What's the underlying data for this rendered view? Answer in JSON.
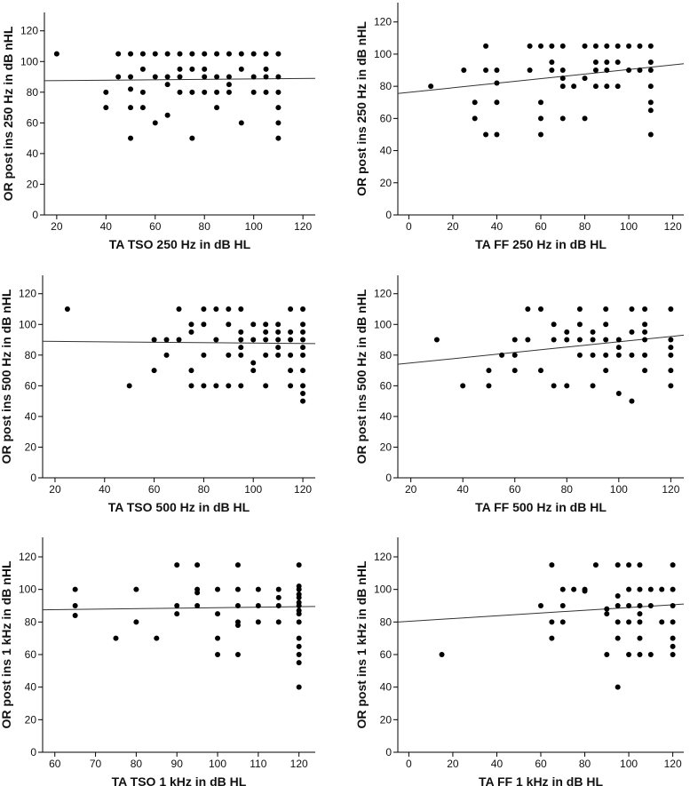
{
  "chart_data": [
    {
      "type": "scatter",
      "xlabel": "TA TSO 250 Hz in dB HL",
      "ylabel": "OR post ins 250 Hz in dB nHL",
      "xlim": [
        15,
        125
      ],
      "ylim": [
        0,
        132
      ],
      "xticks": [
        20,
        40,
        60,
        80,
        100,
        120
      ],
      "yticks": [
        0,
        20,
        40,
        60,
        80,
        100,
        120
      ],
      "fit": {
        "x0": 15,
        "y0": 87.5,
        "x1": 125,
        "y1": 89
      },
      "points": [
        [
          20,
          105
        ],
        [
          40,
          80
        ],
        [
          40,
          70
        ],
        [
          45,
          105
        ],
        [
          45,
          90
        ],
        [
          50,
          105
        ],
        [
          50,
          90
        ],
        [
          50,
          82
        ],
        [
          50,
          70
        ],
        [
          50,
          50
        ],
        [
          55,
          105
        ],
        [
          55,
          95
        ],
        [
          55,
          80
        ],
        [
          55,
          70
        ],
        [
          60,
          105
        ],
        [
          60,
          90
        ],
        [
          60,
          60
        ],
        [
          65,
          105
        ],
        [
          65,
          90
        ],
        [
          65,
          85
        ],
        [
          65,
          65
        ],
        [
          70,
          105
        ],
        [
          70,
          95
        ],
        [
          70,
          90
        ],
        [
          70,
          80
        ],
        [
          75,
          105
        ],
        [
          75,
          95
        ],
        [
          75,
          80
        ],
        [
          75,
          50
        ],
        [
          80,
          105
        ],
        [
          80,
          95
        ],
        [
          80,
          90
        ],
        [
          80,
          80
        ],
        [
          85,
          105
        ],
        [
          85,
          90
        ],
        [
          85,
          80
        ],
        [
          85,
          70
        ],
        [
          90,
          105
        ],
        [
          90,
          90
        ],
        [
          90,
          85
        ],
        [
          90,
          80
        ],
        [
          95,
          105
        ],
        [
          95,
          95
        ],
        [
          95,
          60
        ],
        [
          100,
          105
        ],
        [
          100,
          90
        ],
        [
          100,
          80
        ],
        [
          105,
          105
        ],
        [
          105,
          95
        ],
        [
          105,
          90
        ],
        [
          105,
          80
        ],
        [
          110,
          105
        ],
        [
          110,
          90
        ],
        [
          110,
          80
        ],
        [
          110,
          70
        ],
        [
          110,
          60
        ],
        [
          110,
          50
        ]
      ]
    },
    {
      "type": "scatter",
      "xlabel": "TA FF 250 Hz in dB HL",
      "ylabel": "OR post ins 250 Hz in dB nHL",
      "xlim": [
        -5,
        125
      ],
      "ylim": [
        0,
        132
      ],
      "xticks": [
        0,
        20,
        40,
        60,
        80,
        100,
        120
      ],
      "yticks": [
        0,
        20,
        40,
        60,
        80,
        100,
        120
      ],
      "fit": {
        "x0": -5,
        "y0": 75.5,
        "x1": 125,
        "y1": 94
      },
      "points": [
        [
          10,
          80
        ],
        [
          25,
          90
        ],
        [
          30,
          70
        ],
        [
          30,
          60
        ],
        [
          35,
          105
        ],
        [
          35,
          90
        ],
        [
          35,
          50
        ],
        [
          40,
          90
        ],
        [
          40,
          82
        ],
        [
          40,
          70
        ],
        [
          40,
          50
        ],
        [
          55,
          105
        ],
        [
          55,
          90
        ],
        [
          60,
          105
        ],
        [
          60,
          70
        ],
        [
          60,
          60
        ],
        [
          60,
          50
        ],
        [
          65,
          105
        ],
        [
          65,
          95
        ],
        [
          65,
          90
        ],
        [
          70,
          105
        ],
        [
          70,
          90
        ],
        [
          70,
          85
        ],
        [
          70,
          80
        ],
        [
          70,
          60
        ],
        [
          75,
          80
        ],
        [
          80,
          105
        ],
        [
          80,
          85
        ],
        [
          80,
          60
        ],
        [
          85,
          105
        ],
        [
          85,
          95
        ],
        [
          85,
          90
        ],
        [
          85,
          80
        ],
        [
          90,
          105
        ],
        [
          90,
          95
        ],
        [
          90,
          90
        ],
        [
          90,
          80
        ],
        [
          95,
          105
        ],
        [
          95,
          95
        ],
        [
          95,
          80
        ],
        [
          100,
          105
        ],
        [
          100,
          90
        ],
        [
          105,
          105
        ],
        [
          105,
          90
        ],
        [
          110,
          105
        ],
        [
          110,
          95
        ],
        [
          110,
          90
        ],
        [
          110,
          80
        ],
        [
          110,
          70
        ],
        [
          110,
          65
        ],
        [
          110,
          50
        ]
      ]
    },
    {
      "type": "scatter",
      "xlabel": "TA TSO 500 Hz in dB HL",
      "ylabel": "OR post ins 500 Hz in dB nHL",
      "xlim": [
        15,
        125
      ],
      "ylim": [
        0,
        132
      ],
      "xticks": [
        20,
        40,
        60,
        80,
        100,
        120
      ],
      "yticks": [
        0,
        20,
        40,
        60,
        80,
        100,
        120
      ],
      "fit": {
        "x0": 15,
        "y0": 89,
        "x1": 125,
        "y1": 87.5
      },
      "points": [
        [
          25,
          110
        ],
        [
          50,
          60
        ],
        [
          60,
          90
        ],
        [
          60,
          70
        ],
        [
          65,
          90
        ],
        [
          65,
          80
        ],
        [
          70,
          110
        ],
        [
          70,
          90
        ],
        [
          75,
          100
        ],
        [
          75,
          95
        ],
        [
          75,
          70
        ],
        [
          75,
          60
        ],
        [
          80,
          110
        ],
        [
          80,
          100
        ],
        [
          80,
          80
        ],
        [
          80,
          60
        ],
        [
          85,
          110
        ],
        [
          85,
          90
        ],
        [
          85,
          60
        ],
        [
          90,
          110
        ],
        [
          90,
          100
        ],
        [
          90,
          80
        ],
        [
          90,
          60
        ],
        [
          95,
          110
        ],
        [
          95,
          95
        ],
        [
          95,
          90
        ],
        [
          95,
          85
        ],
        [
          95,
          80
        ],
        [
          95,
          60
        ],
        [
          100,
          100
        ],
        [
          100,
          90
        ],
        [
          100,
          75
        ],
        [
          100,
          70
        ],
        [
          105,
          100
        ],
        [
          105,
          95
        ],
        [
          105,
          90
        ],
        [
          105,
          80
        ],
        [
          105,
          60
        ],
        [
          110,
          100
        ],
        [
          110,
          95
        ],
        [
          110,
          90
        ],
        [
          110,
          85
        ],
        [
          110,
          80
        ],
        [
          115,
          110
        ],
        [
          115,
          95
        ],
        [
          115,
          90
        ],
        [
          115,
          80
        ],
        [
          115,
          70
        ],
        [
          115,
          60
        ],
        [
          120,
          110
        ],
        [
          120,
          100
        ],
        [
          120,
          95
        ],
        [
          120,
          90
        ],
        [
          120,
          85
        ],
        [
          120,
          80
        ],
        [
          120,
          70
        ],
        [
          120,
          60
        ],
        [
          120,
          55
        ],
        [
          120,
          50
        ]
      ]
    },
    {
      "type": "scatter",
      "xlabel": "TA FF 500 Hz in dB HL",
      "ylabel": "OR post ins 500 Hz in dB nHL",
      "xlim": [
        15,
        125
      ],
      "ylim": [
        0,
        132
      ],
      "xticks": [
        20,
        40,
        60,
        80,
        100,
        120
      ],
      "yticks": [
        0,
        20,
        40,
        60,
        80,
        100,
        120
      ],
      "fit": {
        "x0": 15,
        "y0": 74,
        "x1": 125,
        "y1": 93
      },
      "points": [
        [
          30,
          90
        ],
        [
          40,
          60
        ],
        [
          50,
          70
        ],
        [
          50,
          60
        ],
        [
          55,
          80
        ],
        [
          60,
          90
        ],
        [
          60,
          80
        ],
        [
          60,
          70
        ],
        [
          65,
          110
        ],
        [
          65,
          90
        ],
        [
          70,
          110
        ],
        [
          70,
          70
        ],
        [
          75,
          100
        ],
        [
          75,
          90
        ],
        [
          75,
          60
        ],
        [
          80,
          95
        ],
        [
          80,
          90
        ],
        [
          80,
          60
        ],
        [
          85,
          110
        ],
        [
          85,
          100
        ],
        [
          85,
          90
        ],
        [
          85,
          80
        ],
        [
          90,
          95
        ],
        [
          90,
          90
        ],
        [
          90,
          80
        ],
        [
          90,
          60
        ],
        [
          95,
          110
        ],
        [
          95,
          100
        ],
        [
          95,
          90
        ],
        [
          95,
          80
        ],
        [
          95,
          70
        ],
        [
          100,
          90
        ],
        [
          100,
          85
        ],
        [
          100,
          80
        ],
        [
          100,
          55
        ],
        [
          105,
          110
        ],
        [
          105,
          95
        ],
        [
          105,
          80
        ],
        [
          105,
          50
        ],
        [
          110,
          110
        ],
        [
          110,
          100
        ],
        [
          110,
          95
        ],
        [
          110,
          90
        ],
        [
          110,
          80
        ],
        [
          110,
          70
        ],
        [
          120,
          110
        ],
        [
          120,
          90
        ],
        [
          120,
          85
        ],
        [
          120,
          80
        ],
        [
          120,
          70
        ],
        [
          120,
          60
        ]
      ]
    },
    {
      "type": "scatter",
      "xlabel": "TA TSO 1 kHz in dB HL",
      "ylabel": "OR post ins 1 kHz in dB nHL",
      "xlim": [
        57,
        124
      ],
      "ylim": [
        0,
        132
      ],
      "xticks": [
        60,
        70,
        80,
        90,
        100,
        110,
        120
      ],
      "yticks": [
        0,
        20,
        40,
        60,
        80,
        100,
        120
      ],
      "fit": {
        "x0": 57,
        "y0": 87.5,
        "x1": 124,
        "y1": 89.5
      },
      "points": [
        [
          65,
          100
        ],
        [
          65,
          90
        ],
        [
          65,
          84
        ],
        [
          75,
          70
        ],
        [
          80,
          100
        ],
        [
          80,
          80
        ],
        [
          85,
          70
        ],
        [
          90,
          115
        ],
        [
          90,
          90
        ],
        [
          90,
          85
        ],
        [
          95,
          115
        ],
        [
          95,
          100
        ],
        [
          95,
          98
        ],
        [
          95,
          90
        ],
        [
          100,
          100
        ],
        [
          100,
          85
        ],
        [
          100,
          70
        ],
        [
          100,
          60
        ],
        [
          105,
          115
        ],
        [
          105,
          100
        ],
        [
          105,
          90
        ],
        [
          105,
          80
        ],
        [
          105,
          78
        ],
        [
          105,
          60
        ],
        [
          110,
          100
        ],
        [
          110,
          90
        ],
        [
          110,
          80
        ],
        [
          115,
          100
        ],
        [
          115,
          95
        ],
        [
          115,
          90
        ],
        [
          115,
          80
        ],
        [
          120,
          115
        ],
        [
          120,
          102
        ],
        [
          120,
          100
        ],
        [
          120,
          97
        ],
        [
          120,
          95
        ],
        [
          120,
          92
        ],
        [
          120,
          90
        ],
        [
          120,
          87
        ],
        [
          120,
          85
        ],
        [
          120,
          80
        ],
        [
          120,
          70
        ],
        [
          120,
          65
        ],
        [
          120,
          60
        ],
        [
          120,
          55
        ],
        [
          120,
          40
        ]
      ]
    },
    {
      "type": "scatter",
      "xlabel": "TA FF 1 kHz in dB HL",
      "ylabel": "OR post ins 1 kHz in dB nHL",
      "xlim": [
        -5,
        125
      ],
      "ylim": [
        0,
        132
      ],
      "xticks": [
        0,
        20,
        40,
        60,
        80,
        100,
        120
      ],
      "yticks": [
        0,
        20,
        40,
        60,
        80,
        100,
        120
      ],
      "fit": {
        "x0": -5,
        "y0": 80,
        "x1": 125,
        "y1": 91
      },
      "points": [
        [
          15,
          60
        ],
        [
          60,
          90
        ],
        [
          65,
          115
        ],
        [
          65,
          80
        ],
        [
          65,
          70
        ],
        [
          70,
          100
        ],
        [
          70,
          90
        ],
        [
          70,
          80
        ],
        [
          75,
          100
        ],
        [
          80,
          100
        ],
        [
          80,
          99
        ],
        [
          85,
          115
        ],
        [
          90,
          88
        ],
        [
          90,
          85
        ],
        [
          90,
          60
        ],
        [
          95,
          115
        ],
        [
          95,
          96
        ],
        [
          95,
          90
        ],
        [
          95,
          80
        ],
        [
          95,
          70
        ],
        [
          95,
          40
        ],
        [
          100,
          115
        ],
        [
          100,
          100
        ],
        [
          100,
          90
        ],
        [
          100,
          80
        ],
        [
          100,
          60
        ],
        [
          105,
          115
        ],
        [
          105,
          100
        ],
        [
          105,
          90
        ],
        [
          105,
          85
        ],
        [
          105,
          80
        ],
        [
          105,
          70
        ],
        [
          105,
          60
        ],
        [
          110,
          100
        ],
        [
          110,
          90
        ],
        [
          110,
          60
        ],
        [
          115,
          100
        ],
        [
          115,
          80
        ],
        [
          120,
          115
        ],
        [
          120,
          100
        ],
        [
          120,
          90
        ],
        [
          120,
          80
        ],
        [
          120,
          70
        ],
        [
          120,
          65
        ],
        [
          120,
          60
        ]
      ]
    }
  ]
}
